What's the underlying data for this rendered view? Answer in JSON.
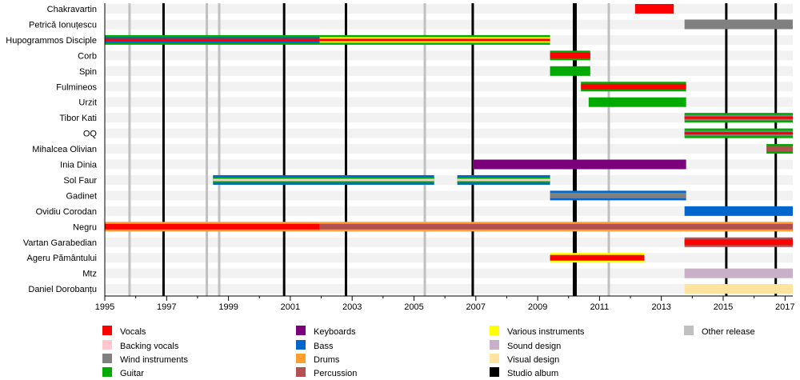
{
  "chart_data": {
    "type": "timeline",
    "title": "",
    "xlim": [
      1995,
      2017.25
    ],
    "x_ticks": [
      1995,
      1997,
      1999,
      2001,
      2003,
      2005,
      2007,
      2009,
      2011,
      2013,
      2015,
      2017
    ],
    "grid": false,
    "legend_placement": "bottom",
    "colors": {
      "Vocals": "#ff0000",
      "Backing vocals": "#ffc8d0",
      "Wind instruments": "#808080",
      "Guitar": "#00aa00",
      "Keyboards": "#7b007b",
      "Bass": "#0066cc",
      "Drums": "#ff9f30",
      "Percussion": "#b05050",
      "Various instruments": "#ffff00",
      "Sound design": "#c8b0c8",
      "Visual design": "#ffe4a0",
      "Studio album": "#000000",
      "Other release": "#c0c0c0"
    },
    "legend": [
      "Vocals",
      "Backing vocals",
      "Wind instruments",
      "Guitar",
      "Keyboards",
      "Bass",
      "Drums",
      "Percussion",
      "Various instruments",
      "Sound design",
      "Visual design",
      "Studio album",
      "Other release"
    ],
    "studio_albums": [
      1996.9,
      2000.8,
      2002.8,
      2006.9,
      2010.2,
      2015.1,
      2016.7
    ],
    "other_releases": [
      1995.8,
      1998.3,
      1998.7,
      2005.35,
      2011.3
    ],
    "members": [
      {
        "name": "Chakravartin",
        "periods": [
          {
            "start": 2012.15,
            "end": 2013.4,
            "roles": [
              "Vocals"
            ]
          }
        ]
      },
      {
        "name": "Petrică Ionuțescu",
        "periods": [
          {
            "start": 2013.75,
            "end": 2017.25,
            "roles": [
              "Wind instruments"
            ]
          }
        ]
      },
      {
        "name": "Hupogrammos Disciple",
        "periods": [
          {
            "start": 1995,
            "end": 2001.95,
            "roles": [
              "Guitar",
              "Bass",
              "Vocals"
            ]
          },
          {
            "start": 2001.95,
            "end": 2009.4,
            "roles": [
              "Guitar",
              "Various instruments",
              "Vocals"
            ]
          }
        ]
      },
      {
        "name": "Corb",
        "periods": [
          {
            "start": 2009.4,
            "end": 2010.7,
            "roles": [
              "Guitar",
              "Vocals"
            ]
          }
        ]
      },
      {
        "name": "Spin",
        "periods": [
          {
            "start": 2009.4,
            "end": 2010.7,
            "roles": [
              "Guitar"
            ]
          }
        ]
      },
      {
        "name": "Fulmineos",
        "periods": [
          {
            "start": 2010.4,
            "end": 2013.8,
            "roles": [
              "Guitar",
              "Vocals"
            ]
          }
        ]
      },
      {
        "name": "Urzit",
        "periods": [
          {
            "start": 2010.65,
            "end": 2013.8,
            "roles": [
              "Guitar"
            ]
          }
        ]
      },
      {
        "name": "Tibor Kati",
        "periods": [
          {
            "start": 2013.75,
            "end": 2017.25,
            "roles": [
              "Guitar",
              "Wind instruments",
              "Vocals"
            ]
          }
        ]
      },
      {
        "name": "OQ",
        "periods": [
          {
            "start": 2013.75,
            "end": 2017.25,
            "roles": [
              "Guitar",
              "Wind instruments",
              "Vocals"
            ]
          }
        ]
      },
      {
        "name": "Mihalcea Olivian",
        "periods": [
          {
            "start": 2016.4,
            "end": 2017.25,
            "roles": [
              "Guitar",
              "Percussion"
            ]
          }
        ]
      },
      {
        "name": "Inia Dinia",
        "periods": [
          {
            "start": 2006.9,
            "end": 2013.8,
            "roles": [
              "Keyboards"
            ]
          }
        ]
      },
      {
        "name": "Sol Faur",
        "periods": [
          {
            "start": 1998.5,
            "end": 2005.65,
            "roles": [
              "Bass",
              "Guitar",
              "Backing vocals"
            ]
          },
          {
            "start": 2006.4,
            "end": 2009.4,
            "roles": [
              "Bass",
              "Guitar",
              "Backing vocals"
            ]
          }
        ]
      },
      {
        "name": "Gadinet",
        "periods": [
          {
            "start": 2009.4,
            "end": 2013.8,
            "roles": [
              "Bass",
              "Wind instruments"
            ]
          }
        ]
      },
      {
        "name": "Ovidiu Corodan",
        "periods": [
          {
            "start": 2013.75,
            "end": 2017.25,
            "roles": [
              "Bass"
            ]
          }
        ]
      },
      {
        "name": "Negru",
        "periods": [
          {
            "start": 1995,
            "end": 2001.95,
            "roles": [
              "Drums",
              "Vocals"
            ]
          },
          {
            "start": 2001.95,
            "end": 2017.25,
            "roles": [
              "Drums",
              "Percussion"
            ]
          }
        ]
      },
      {
        "name": "Vartan Garabedian",
        "periods": [
          {
            "start": 2013.75,
            "end": 2017.25,
            "roles": [
              "Percussion",
              "Vocals"
            ]
          }
        ]
      },
      {
        "name": "Ageru Pământului",
        "periods": [
          {
            "start": 2009.4,
            "end": 2012.45,
            "roles": [
              "Various instruments",
              "Vocals"
            ]
          }
        ]
      },
      {
        "name": "Mtz",
        "periods": [
          {
            "start": 2013.75,
            "end": 2017.25,
            "roles": [
              "Sound design"
            ]
          }
        ]
      },
      {
        "name": "Daniel Dorobanțu",
        "periods": [
          {
            "start": 2013.75,
            "end": 2017.25,
            "roles": [
              "Visual design"
            ]
          }
        ]
      }
    ]
  }
}
